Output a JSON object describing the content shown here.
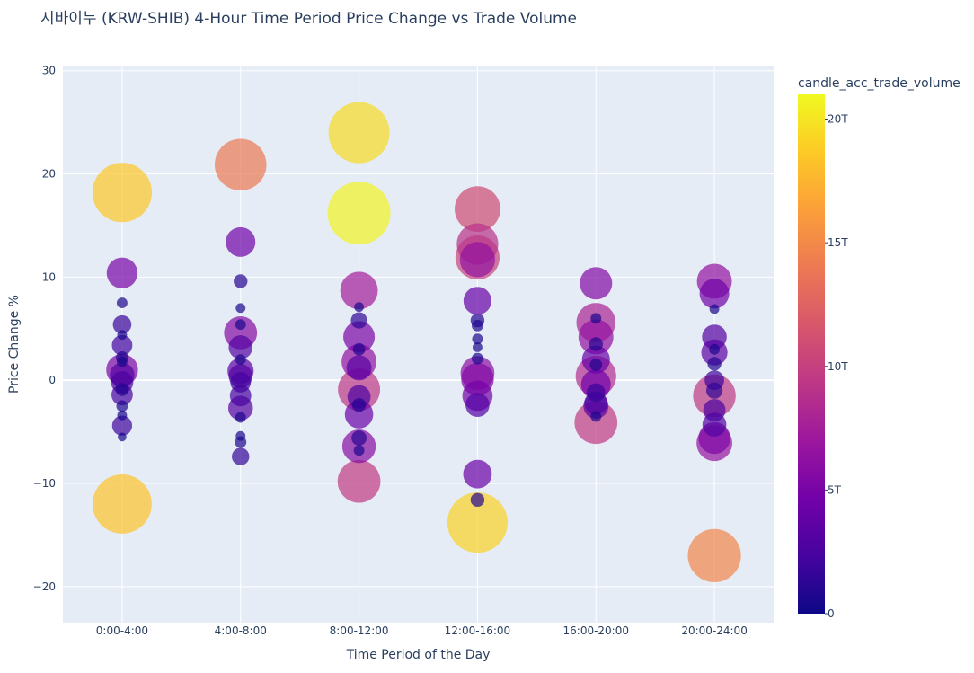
{
  "chart_data": {
    "type": "scatter",
    "title": "시바이누 (KRW-SHIB) 4-Hour Time Period Price Change vs Trade Volume",
    "xlabel": "Time Period of the Day",
    "ylabel": "Price Change %",
    "categories": [
      "0:00-4:00",
      "4:00-8:00",
      "8:00-12:00",
      "12:00-16:00",
      "16:00-20:00",
      "20:00-24:00"
    ],
    "ylim": [
      -23.5,
      30.5
    ],
    "y_ticks": [
      -20,
      -10,
      0,
      10,
      20,
      30
    ],
    "y_tick_labels": [
      "−20",
      "−10",
      "0",
      "10",
      "20",
      "30"
    ],
    "grid": true,
    "colorbar": {
      "title": "candle_acc_trade_volume",
      "range": [
        0,
        21
      ],
      "unit": "T",
      "ticks": [
        0,
        5,
        10,
        15,
        20
      ],
      "tick_labels": [
        "0",
        "5T",
        "10T",
        "15T",
        "20T"
      ]
    },
    "points": [
      {
        "x": "0:00-4:00",
        "y": 18.2,
        "v": 18.5
      },
      {
        "x": "0:00-4:00",
        "y": -12.0,
        "v": 18.3
      },
      {
        "x": "0:00-4:00",
        "y": 10.4,
        "v": 5.0
      },
      {
        "x": "0:00-4:00",
        "y": 1.0,
        "v": 5.3
      },
      {
        "x": "0:00-4:00",
        "y": 0.5,
        "v": 3.2
      },
      {
        "x": "0:00-4:00",
        "y": -0.2,
        "v": 2.6
      },
      {
        "x": "0:00-4:00",
        "y": -1.4,
        "v": 2.4
      },
      {
        "x": "0:00-4:00",
        "y": 3.4,
        "v": 2.2
      },
      {
        "x": "0:00-4:00",
        "y": 5.4,
        "v": 1.8
      },
      {
        "x": "0:00-4:00",
        "y": -4.4,
        "v": 2.1
      },
      {
        "x": "0:00-4:00",
        "y": 7.5,
        "v": 0.6
      },
      {
        "x": "0:00-4:00",
        "y": 2.2,
        "v": 0.8
      },
      {
        "x": "0:00-4:00",
        "y": -2.5,
        "v": 0.7
      },
      {
        "x": "0:00-4:00",
        "y": -3.4,
        "v": 0.5
      },
      {
        "x": "0:00-4:00",
        "y": -5.5,
        "v": 0.4
      },
      {
        "x": "0:00-4:00",
        "y": 4.4,
        "v": 0.5
      },
      {
        "x": "0:00-4:00",
        "y": 1.8,
        "v": 0.6
      },
      {
        "x": "0:00-4:00",
        "y": -0.9,
        "v": 0.9
      },
      {
        "x": "4:00-8:00",
        "y": 20.9,
        "v": 14.0
      },
      {
        "x": "4:00-8:00",
        "y": 13.4,
        "v": 4.6
      },
      {
        "x": "4:00-8:00",
        "y": 4.6,
        "v": 5.7
      },
      {
        "x": "4:00-8:00",
        "y": 9.6,
        "v": 1.0
      },
      {
        "x": "4:00-8:00",
        "y": 7.0,
        "v": 0.5
      },
      {
        "x": "4:00-8:00",
        "y": 5.4,
        "v": 0.6
      },
      {
        "x": "4:00-8:00",
        "y": 3.2,
        "v": 3.0
      },
      {
        "x": "4:00-8:00",
        "y": 0.9,
        "v": 3.6
      },
      {
        "x": "4:00-8:00",
        "y": 0.4,
        "v": 3.0
      },
      {
        "x": "4:00-8:00",
        "y": -0.2,
        "v": 2.2
      },
      {
        "x": "4:00-8:00",
        "y": -1.5,
        "v": 2.4
      },
      {
        "x": "4:00-8:00",
        "y": -2.7,
        "v": 3.2
      },
      {
        "x": "4:00-8:00",
        "y": -3.6,
        "v": 0.6
      },
      {
        "x": "4:00-8:00",
        "y": -5.4,
        "v": 0.5
      },
      {
        "x": "4:00-8:00",
        "y": -6.0,
        "v": 0.7
      },
      {
        "x": "4:00-8:00",
        "y": -7.4,
        "v": 1.6
      },
      {
        "x": "4:00-8:00",
        "y": 2.0,
        "v": 0.6
      },
      {
        "x": "8:00-12:00",
        "y": 24.0,
        "v": 19.5
      },
      {
        "x": "8:00-12:00",
        "y": 16.2,
        "v": 20.7
      },
      {
        "x": "8:00-12:00",
        "y": 8.7,
        "v": 7.4
      },
      {
        "x": "8:00-12:00",
        "y": 5.8,
        "v": 1.4
      },
      {
        "x": "8:00-12:00",
        "y": 7.1,
        "v": 0.5
      },
      {
        "x": "8:00-12:00",
        "y": 4.2,
        "v": 5.2
      },
      {
        "x": "8:00-12:00",
        "y": 1.8,
        "v": 6.4
      },
      {
        "x": "8:00-12:00",
        "y": 1.2,
        "v": 3.3
      },
      {
        "x": "8:00-12:00",
        "y": -0.9,
        "v": 9.3
      },
      {
        "x": "8:00-12:00",
        "y": -1.6,
        "v": 2.8
      },
      {
        "x": "8:00-12:00",
        "y": -3.3,
        "v": 4.2
      },
      {
        "x": "8:00-12:00",
        "y": -5.6,
        "v": 1.2
      },
      {
        "x": "8:00-12:00",
        "y": -6.4,
        "v": 5.9
      },
      {
        "x": "8:00-12:00",
        "y": -9.8,
        "v": 9.6
      },
      {
        "x": "8:00-12:00",
        "y": -2.4,
        "v": 1.0
      },
      {
        "x": "8:00-12:00",
        "y": 3.0,
        "v": 0.8
      },
      {
        "x": "8:00-12:00",
        "y": -6.8,
        "v": 0.6
      },
      {
        "x": "12:00-16:00",
        "y": 16.6,
        "v": 10.9
      },
      {
        "x": "12:00-16:00",
        "y": 13.2,
        "v": 9.0
      },
      {
        "x": "12:00-16:00",
        "y": 11.9,
        "v": 10.2
      },
      {
        "x": "12:00-16:00",
        "y": 11.7,
        "v": 6.5
      },
      {
        "x": "12:00-16:00",
        "y": 7.7,
        "v": 4.1
      },
      {
        "x": "12:00-16:00",
        "y": 5.8,
        "v": 1.0
      },
      {
        "x": "12:00-16:00",
        "y": 5.3,
        "v": 0.7
      },
      {
        "x": "12:00-16:00",
        "y": 4.0,
        "v": 0.6
      },
      {
        "x": "12:00-16:00",
        "y": 3.2,
        "v": 0.5
      },
      {
        "x": "12:00-16:00",
        "y": 0.7,
        "v": 6.0
      },
      {
        "x": "12:00-16:00",
        "y": 0.1,
        "v": 5.6
      },
      {
        "x": "12:00-16:00",
        "y": -1.5,
        "v": 4.8
      },
      {
        "x": "12:00-16:00",
        "y": -2.4,
        "v": 3.0
      },
      {
        "x": "12:00-16:00",
        "y": -9.1,
        "v": 4.3
      },
      {
        "x": "12:00-16:00",
        "y": -11.6,
        "v": 1.0
      },
      {
        "x": "12:00-16:00",
        "y": -13.8,
        "v": 19.0
      },
      {
        "x": "12:00-16:00",
        "y": 2.1,
        "v": 0.7
      },
      {
        "x": "16:00-20:00",
        "y": 9.4,
        "v": 5.5
      },
      {
        "x": "16:00-20:00",
        "y": 5.6,
        "v": 8.0
      },
      {
        "x": "16:00-20:00",
        "y": 6.0,
        "v": 0.6
      },
      {
        "x": "16:00-20:00",
        "y": 4.2,
        "v": 6.4
      },
      {
        "x": "16:00-20:00",
        "y": 3.5,
        "v": 1.0
      },
      {
        "x": "16:00-20:00",
        "y": 2.0,
        "v": 4.1
      },
      {
        "x": "16:00-20:00",
        "y": 0.4,
        "v": 8.6
      },
      {
        "x": "16:00-20:00",
        "y": -0.4,
        "v": 4.6
      },
      {
        "x": "16:00-20:00",
        "y": -1.2,
        "v": 1.8
      },
      {
        "x": "16:00-20:00",
        "y": -2.2,
        "v": 2.8
      },
      {
        "x": "16:00-20:00",
        "y": -2.5,
        "v": 3.3
      },
      {
        "x": "16:00-20:00",
        "y": -4.1,
        "v": 9.6
      },
      {
        "x": "16:00-20:00",
        "y": 1.5,
        "v": 0.8
      },
      {
        "x": "16:00-20:00",
        "y": -3.5,
        "v": 0.6
      },
      {
        "x": "20:00-24:00",
        "y": 9.6,
        "v": 6.4
      },
      {
        "x": "20:00-24:00",
        "y": 8.4,
        "v": 4.6
      },
      {
        "x": "20:00-24:00",
        "y": 6.9,
        "v": 0.5
      },
      {
        "x": "20:00-24:00",
        "y": 4.2,
        "v": 3.2
      },
      {
        "x": "20:00-24:00",
        "y": 2.7,
        "v": 3.6
      },
      {
        "x": "20:00-24:00",
        "y": 1.6,
        "v": 1.0
      },
      {
        "x": "20:00-24:00",
        "y": 0.0,
        "v": 2.0
      },
      {
        "x": "20:00-24:00",
        "y": -1.5,
        "v": 9.5
      },
      {
        "x": "20:00-24:00",
        "y": -2.9,
        "v": 2.6
      },
      {
        "x": "20:00-24:00",
        "y": -4.3,
        "v": 3.0
      },
      {
        "x": "20:00-24:00",
        "y": -5.6,
        "v": 5.3
      },
      {
        "x": "20:00-24:00",
        "y": -6.1,
        "v": 6.7
      },
      {
        "x": "20:00-24:00",
        "y": -17.0,
        "v": 14.8
      },
      {
        "x": "20:00-24:00",
        "y": 3.0,
        "v": 0.6
      },
      {
        "x": "20:00-24:00",
        "y": -1.0,
        "v": 1.4
      }
    ]
  }
}
